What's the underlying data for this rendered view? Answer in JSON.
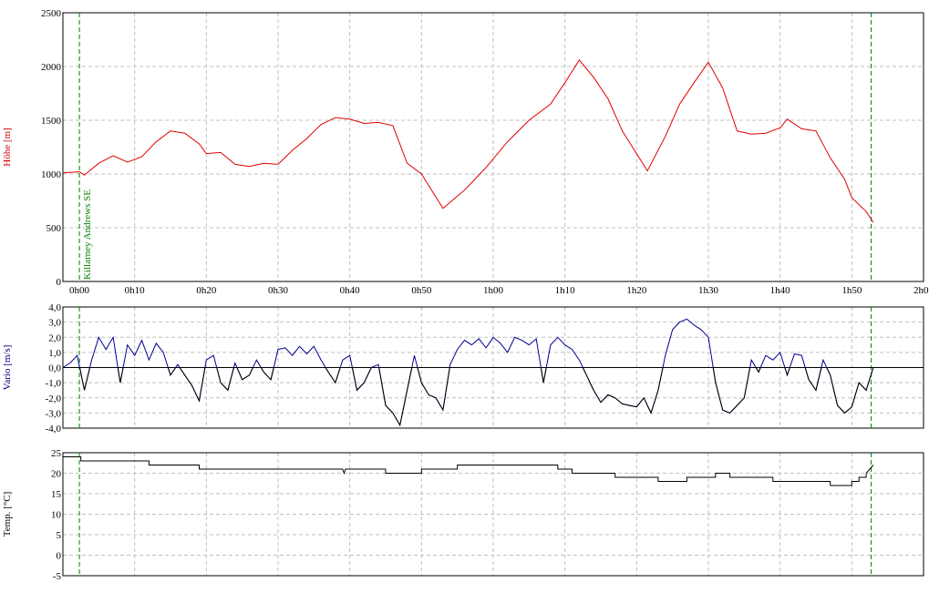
{
  "chart_data": [
    {
      "type": "line",
      "ylabel": "Höhe [m]",
      "ylabel_color": "#cc0000",
      "xlim": [
        0,
        120
      ],
      "ylim": [
        0,
        2500
      ],
      "yticks": [
        0,
        500,
        1000,
        1500,
        2000,
        2500
      ],
      "grid": true,
      "xticks": [
        {
          "value": 0,
          "label": "0h00"
        },
        {
          "value": 10,
          "label": "0h10"
        },
        {
          "value": 20,
          "label": "0h20"
        },
        {
          "value": 30,
          "label": "0h30"
        },
        {
          "value": 40,
          "label": "0h40"
        },
        {
          "value": 50,
          "label": "0h50"
        },
        {
          "value": 60,
          "label": "1h00"
        },
        {
          "value": 70,
          "label": "1h10"
        },
        {
          "value": 80,
          "label": "1h20"
        },
        {
          "value": 90,
          "label": "1h30"
        },
        {
          "value": 100,
          "label": "1h40"
        },
        {
          "value": 110,
          "label": "1h50"
        },
        {
          "value": 120,
          "label": "2h00"
        }
      ],
      "markers": [
        {
          "x": 2.3,
          "label": "Killarney Andrews SE"
        },
        {
          "x": 112.7
        }
      ],
      "marker_color": "#008000",
      "series": [
        {
          "color": "#e00000",
          "x": [
            0,
            2.3,
            3,
            5,
            7,
            9,
            11,
            13,
            15,
            17,
            19,
            20,
            22,
            24,
            26,
            28,
            30,
            32,
            34,
            36,
            38,
            40,
            42,
            44,
            46,
            48,
            50,
            53,
            56,
            59,
            62,
            65,
            68,
            70,
            72,
            74,
            76,
            78,
            81.5,
            84,
            86,
            88,
            90,
            92,
            94,
            96,
            98,
            100,
            101,
            103,
            105,
            107,
            109,
            110,
            112,
            113
          ],
          "values": [
            1010,
            1020,
            990,
            1100,
            1170,
            1110,
            1160,
            1300,
            1400,
            1380,
            1280,
            1190,
            1200,
            1090,
            1070,
            1100,
            1090,
            1220,
            1330,
            1460,
            1525,
            1510,
            1470,
            1480,
            1450,
            1100,
            1000,
            680,
            850,
            1060,
            1300,
            1500,
            1650,
            1850,
            2060,
            1900,
            1700,
            1400,
            1030,
            1350,
            1650,
            1850,
            2040,
            1800,
            1400,
            1370,
            1380,
            1430,
            1510,
            1420,
            1400,
            1150,
            950,
            780,
            650,
            550
          ]
        }
      ]
    },
    {
      "type": "line",
      "ylabel": "Vario [m/s]",
      "ylabel_color": "#000080",
      "xlim": [
        0,
        120
      ],
      "ylim": [
        -4,
        4
      ],
      "grid": true,
      "zero_line": true,
      "yticks": [
        {
          "value": -4,
          "label": "-4,0"
        },
        {
          "value": -3,
          "label": "-3,0"
        },
        {
          "value": -2,
          "label": "-2,0"
        },
        {
          "value": -1,
          "label": "-1,0"
        },
        {
          "value": 0,
          "label": "0,0"
        },
        {
          "value": 1,
          "label": "1,0"
        },
        {
          "value": 2,
          "label": "2,0"
        },
        {
          "value": 3,
          "label": "3,0"
        },
        {
          "value": 4,
          "label": "4,0"
        }
      ],
      "series": [
        {
          "color": "#000090",
          "negative_color": "#000000",
          "x": [
            0,
            1,
            2,
            3,
            4,
            5,
            6,
            7,
            8,
            9,
            10,
            11,
            12,
            13,
            14,
            15,
            16,
            17,
            18,
            19,
            20,
            21,
            22,
            23,
            24,
            25,
            26,
            27,
            28,
            29,
            30,
            31,
            32,
            33,
            34,
            35,
            36,
            37,
            38,
            39,
            40,
            41,
            42,
            43,
            44,
            45,
            46,
            47,
            48,
            49,
            50,
            51,
            52,
            53,
            54,
            55,
            56,
            57,
            58,
            59,
            60,
            61,
            62,
            63,
            64,
            65,
            66,
            67,
            68,
            69,
            70,
            71,
            72,
            73,
            74,
            75,
            76,
            77,
            78,
            79,
            80,
            81,
            82,
            83,
            84,
            85,
            86,
            87,
            88,
            89,
            90,
            91,
            92,
            93,
            94,
            95,
            96,
            97,
            98,
            99,
            100,
            101,
            102,
            103,
            104,
            105,
            106,
            107,
            108,
            109,
            110,
            111,
            112,
            113
          ],
          "values": [
            0,
            0.3,
            0.8,
            -1.5,
            0.5,
            2.0,
            1.2,
            2.0,
            -1.0,
            1.5,
            0.8,
            1.8,
            0.5,
            1.6,
            1.0,
            -0.5,
            0.2,
            -0.5,
            -1.2,
            -2.2,
            0.5,
            0.8,
            -1.0,
            -1.5,
            0.3,
            -0.8,
            -0.5,
            0.5,
            -0.3,
            -0.8,
            1.2,
            1.3,
            0.8,
            1.4,
            0.9,
            1.4,
            0.5,
            -0.3,
            -1.0,
            0.5,
            0.8,
            -1.5,
            -1.0,
            0,
            0.2,
            -2.5,
            -3.0,
            -3.8,
            -1.5,
            0.8,
            -1.0,
            -1.8,
            -2.0,
            -2.8,
            0.2,
            1.2,
            1.8,
            1.5,
            1.9,
            1.3,
            2.0,
            1.6,
            1.0,
            2.0,
            1.8,
            1.5,
            1.9,
            -1.0,
            1.5,
            2.0,
            1.5,
            1.2,
            0.5,
            -0.5,
            -1.5,
            -2.3,
            -1.8,
            -2.0,
            -2.4,
            -2.5,
            -2.6,
            -2.0,
            -3.0,
            -1.5,
            0.8,
            2.5,
            3.0,
            3.2,
            2.8,
            2.5,
            2.0,
            -1.0,
            -2.8,
            -3.0,
            -2.5,
            -2.0,
            0.5,
            -0.3,
            0.8,
            0.5,
            1.0,
            -0.5,
            0.9,
            0.8,
            -0.8,
            -1.5,
            0.5,
            -0.5,
            -2.5,
            -3.0,
            -2.6,
            -1.0,
            -1.5,
            0
          ]
        }
      ]
    },
    {
      "type": "line",
      "ylabel": "Temp. [°C]",
      "ylabel_color": "#000000",
      "xlim": [
        0,
        120
      ],
      "ylim": [
        -5,
        25
      ],
      "yticks": [
        -5,
        0,
        5,
        10,
        15,
        20,
        25
      ],
      "grid": true,
      "series": [
        {
          "color": "#000000",
          "x": [
            0,
            2.5,
            2.5,
            12,
            12,
            19,
            19,
            39,
            39.2,
            39.4,
            45,
            45,
            50,
            50,
            55,
            55,
            69,
            69,
            71,
            71,
            77,
            77,
            83,
            83,
            87,
            87,
            91,
            91,
            93,
            93,
            99,
            99,
            107,
            107,
            110,
            110,
            111,
            111,
            112,
            112,
            113
          ],
          "values": [
            24,
            24,
            23,
            23,
            22,
            22,
            21,
            21,
            20,
            21,
            21,
            20,
            20,
            21,
            21,
            22,
            22,
            21,
            21,
            20,
            20,
            19,
            19,
            18,
            18,
            19,
            19,
            20,
            20,
            19,
            19,
            18,
            18,
            17,
            17,
            18,
            18,
            19,
            19,
            20,
            22
          ]
        }
      ]
    }
  ]
}
